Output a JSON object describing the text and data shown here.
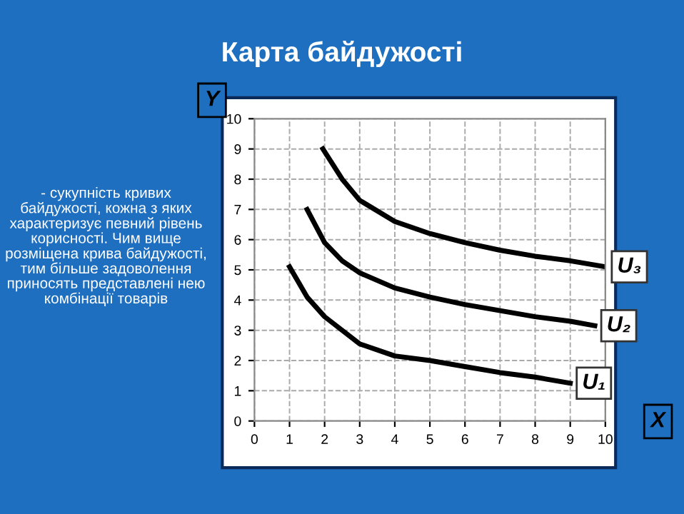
{
  "chart_data": {
    "type": "line",
    "title": "Карта байдужості",
    "xlabel": "X",
    "ylabel": "Y",
    "annotations": [
      "- сукупність кривих байдужості, кожна з яких характеризує певний рівень корисності. Чим вище розміщена крива байдужості, тим більше задоволення приносять представлені нею комбінації товарів"
    ],
    "series": [
      {
        "name": "U₁",
        "color": "#000000",
        "x": [
          1,
          1.5,
          2,
          3,
          4,
          5,
          6,
          7,
          8,
          9
        ],
        "values": [
          5.1,
          4.1,
          3.45,
          2.55,
          2.15,
          2.0,
          1.8,
          1.6,
          1.45,
          1.25
        ]
      },
      {
        "name": "U₂",
        "color": "#000000",
        "x": [
          1.5,
          2,
          2.5,
          3,
          4,
          5,
          6,
          7,
          8,
          9,
          9.7
        ],
        "values": [
          7,
          5.9,
          5.3,
          4.9,
          4.4,
          4.1,
          3.85,
          3.65,
          3.45,
          3.3,
          3.15
        ]
      },
      {
        "name": "U₃",
        "color": "#000000",
        "x": [
          1.95,
          2.5,
          3,
          4,
          5,
          6,
          7,
          8,
          9,
          10
        ],
        "values": [
          9,
          8,
          7.3,
          6.6,
          6.2,
          5.9,
          5.65,
          5.45,
          5.3,
          5.1
        ]
      }
    ],
    "xlim": [
      0,
      10
    ],
    "ylim": [
      0,
      10
    ],
    "xticks": [
      0,
      1,
      2,
      3,
      4,
      5,
      6,
      7,
      8,
      9,
      10
    ],
    "yticks": [
      0,
      1,
      2,
      3,
      4,
      5,
      6,
      7,
      8,
      9,
      10
    ],
    "grid": true,
    "marker": "none",
    "line_style": "solid"
  }
}
